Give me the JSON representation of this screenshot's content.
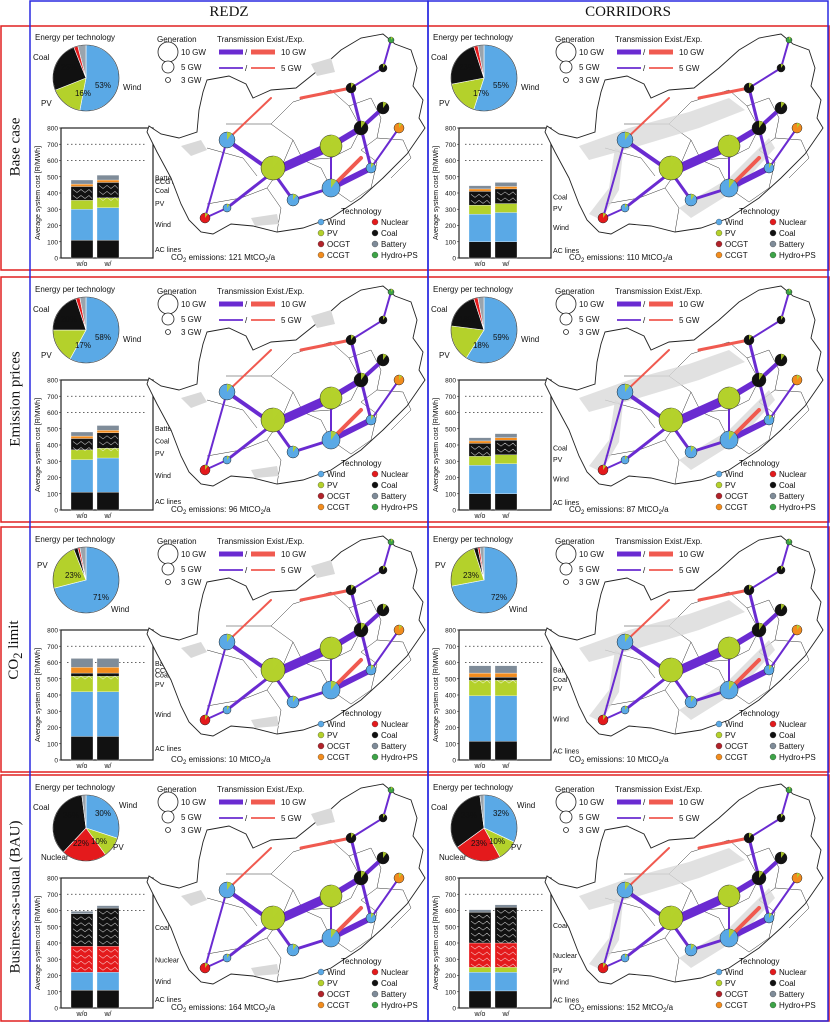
{
  "columns": [
    "REDZ",
    "CORRIDORS"
  ],
  "row_labels": [
    "Base case",
    "Emission prices",
    "CO2 limit",
    "Business-as-usual (BAU)"
  ],
  "labels": {
    "energy_title": "Energy per technology",
    "generation_title": "Generation",
    "gen_sizes": [
      "10 GW",
      "5 GW",
      "3 GW"
    ],
    "transmission_title": "Transmission Exist./Exp.",
    "trans_sizes": [
      "10 GW",
      "5 GW"
    ],
    "slash": "/",
    "technology_title": "Technology",
    "tech_legend": [
      "Wind",
      "Nuclear",
      "PV",
      "Coal",
      "OCGT",
      "Battery",
      "CCGT",
      "Hydro+PS"
    ],
    "y_axis": "Average system cost [R/MWh]",
    "y_ticks": [
      "0",
      "100",
      "200",
      "300",
      "400",
      "500",
      "600",
      "700",
      "800"
    ],
    "bar_categories": [
      "w/o\nEp",
      "w/\nEp"
    ],
    "co2_prefix": "CO2 emissions: "
  },
  "colors": {
    "Wind": "#5aa9e6",
    "PV": "#b4d12b",
    "Coal": "#111111",
    "Nuclear": "#e41a1c",
    "OCGT": "#b2222a",
    "CCGT": "#f28c1e",
    "Battery": "#7f8c99",
    "Hydro+PS": "#3da447",
    "AC lines": "#111111",
    "existing_line": "#6a2bd1",
    "expansion_line": "#f05a50",
    "row_border": "#e02020",
    "col_border": "#2a2ae0"
  },
  "chart_data": [
    {
      "type": "pie+bar",
      "row": "Base case",
      "column": "REDZ",
      "pie": [
        {
          "label": "Wind",
          "value": 53
        },
        {
          "label": "PV",
          "value": 16
        },
        {
          "label": "Coal",
          "value": 25
        },
        {
          "label": "Nuclear",
          "value": 2
        },
        {
          "label": "Other",
          "value": 4
        }
      ],
      "pie_labels_shown": [
        "Coal",
        "25%",
        "53%",
        "Wind",
        "PV",
        "16%"
      ],
      "bar_legend": [
        "Battery",
        "CCGT",
        "Coal",
        "PV",
        "Wind",
        "AC lines"
      ],
      "bars": [
        {
          "category": "w/o Ep",
          "stack": {
            "AC lines": 110,
            "Wind": 190,
            "PV": 55,
            "Coal": 85,
            "CCGT": 15,
            "Battery": 25
          }
        },
        {
          "category": "w/ Ep",
          "stack": {
            "AC lines": 110,
            "Wind": 200,
            "PV": 60,
            "Coal": 95,
            "CCGT": 15,
            "Battery": 30
          }
        }
      ],
      "ylim": [
        0,
        800
      ],
      "co2": "121 MtCO2/a"
    },
    {
      "type": "pie+bar",
      "row": "Base case",
      "column": "CORRIDORS",
      "pie": [
        {
          "label": "Wind",
          "value": 55
        },
        {
          "label": "PV",
          "value": 17
        },
        {
          "label": "Coal",
          "value": 23
        },
        {
          "label": "Nuclear",
          "value": 2
        },
        {
          "label": "Other",
          "value": 3
        }
      ],
      "pie_labels_shown": [
        "Coal",
        "23%",
        "55%",
        "Wind",
        "PV",
        "17%"
      ],
      "bar_legend": [
        "Coal",
        "PV",
        "Wind",
        "AC lines"
      ],
      "bars": [
        {
          "category": "w/o Ep",
          "stack": {
            "AC lines": 100,
            "Wind": 170,
            "PV": 55,
            "Coal": 85,
            "CCGT": 15,
            "Battery": 20
          }
        },
        {
          "category": "w/ Ep",
          "stack": {
            "AC lines": 100,
            "Wind": 180,
            "PV": 55,
            "Coal": 90,
            "CCGT": 15,
            "Battery": 25
          }
        }
      ],
      "ylim": [
        0,
        800
      ],
      "co2": "110 MtCO2/a"
    },
    {
      "type": "pie+bar",
      "row": "Emission prices",
      "column": "REDZ",
      "pie": [
        {
          "label": "Wind",
          "value": 58
        },
        {
          "label": "PV",
          "value": 17
        },
        {
          "label": "Coal",
          "value": 20
        },
        {
          "label": "Nuclear",
          "value": 2
        },
        {
          "label": "Other",
          "value": 3
        }
      ],
      "pie_labels_shown": [
        "Coal",
        "20%",
        "58%",
        "Wind",
        "PV",
        "17%"
      ],
      "bar_legend": [
        "Battery",
        "Coal",
        "PV",
        "Wind",
        "AC lines"
      ],
      "bars": [
        {
          "category": "w/o Ep",
          "stack": {
            "AC lines": 110,
            "Wind": 200,
            "PV": 60,
            "Coal": 70,
            "CCGT": 15,
            "Battery": 25
          }
        },
        {
          "category": "w/ Ep",
          "stack": {
            "AC lines": 110,
            "Wind": 210,
            "PV": 60,
            "Coal": 95,
            "CCGT": 15,
            "Battery": 30
          }
        }
      ],
      "ylim": [
        0,
        800
      ],
      "co2": "96 MtCO2/a"
    },
    {
      "type": "pie+bar",
      "row": "Emission prices",
      "column": "CORRIDORS",
      "pie": [
        {
          "label": "Wind",
          "value": 59
        },
        {
          "label": "PV",
          "value": 18
        },
        {
          "label": "Coal",
          "value": 18
        },
        {
          "label": "Nuclear",
          "value": 2
        },
        {
          "label": "Other",
          "value": 3
        }
      ],
      "pie_labels_shown": [
        "Coal",
        "18%",
        "59%",
        "Wind",
        "PV",
        "18%"
      ],
      "bar_legend": [
        "Coal",
        "PV",
        "Wind",
        "AC lines"
      ],
      "bars": [
        {
          "category": "w/o Ep",
          "stack": {
            "AC lines": 100,
            "Wind": 175,
            "PV": 55,
            "Coal": 80,
            "CCGT": 15,
            "Battery": 20
          }
        },
        {
          "category": "w/ Ep",
          "stack": {
            "AC lines": 100,
            "Wind": 185,
            "PV": 55,
            "Coal": 90,
            "CCGT": 15,
            "Battery": 25
          }
        }
      ],
      "ylim": [
        0,
        800
      ],
      "co2": "87 MtCO2/a"
    },
    {
      "type": "pie+bar",
      "row": "CO2 limit",
      "column": "REDZ",
      "pie": [
        {
          "label": "Wind",
          "value": 71
        },
        {
          "label": "PV",
          "value": 23
        },
        {
          "label": "Coal",
          "value": 2
        },
        {
          "label": "Nuclear",
          "value": 1
        },
        {
          "label": "Other",
          "value": 3
        }
      ],
      "pie_labels_shown": [
        "PV",
        "23%",
        "71%",
        "Wind"
      ],
      "bar_legend": [
        "Battery",
        "CCGT",
        "Coal",
        "PV",
        "Wind",
        "AC lines"
      ],
      "bars": [
        {
          "category": "w/o Ep",
          "stack": {
            "AC lines": 145,
            "Wind": 275,
            "PV": 95,
            "Coal": 20,
            "CCGT": 35,
            "Battery": 55
          }
        },
        {
          "category": "w/ Ep",
          "stack": {
            "AC lines": 145,
            "Wind": 275,
            "PV": 95,
            "Coal": 20,
            "CCGT": 35,
            "Battery": 55
          }
        }
      ],
      "ylim": [
        0,
        800
      ],
      "co2": "10 MtCO2/a"
    },
    {
      "type": "pie+bar",
      "row": "CO2 limit",
      "column": "CORRIDORS",
      "pie": [
        {
          "label": "Wind",
          "value": 72
        },
        {
          "label": "PV",
          "value": 23
        },
        {
          "label": "Coal",
          "value": 2
        },
        {
          "label": "Nuclear",
          "value": 1
        },
        {
          "label": "Other",
          "value": 2
        }
      ],
      "pie_labels_shown": [
        "PV",
        "23%",
        "72%",
        "Wind"
      ],
      "bar_legend": [
        "Battery",
        "Coal",
        "PV",
        "Wind",
        "AC lines"
      ],
      "bars": [
        {
          "category": "w/o Ep",
          "stack": {
            "AC lines": 115,
            "Wind": 280,
            "PV": 95,
            "Coal": 20,
            "CCGT": 25,
            "Battery": 45
          }
        },
        {
          "category": "w/ Ep",
          "stack": {
            "AC lines": 115,
            "Wind": 280,
            "PV": 95,
            "Coal": 20,
            "CCGT": 25,
            "Battery": 45
          }
        }
      ],
      "ylim": [
        0,
        800
      ],
      "co2": "10 MtCO2/a"
    },
    {
      "type": "pie+bar",
      "row": "Business-as-usual (BAU)",
      "column": "REDZ",
      "pie": [
        {
          "label": "Wind",
          "value": 30
        },
        {
          "label": "PV",
          "value": 10
        },
        {
          "label": "Nuclear",
          "value": 22
        },
        {
          "label": "Coal",
          "value": 36
        },
        {
          "label": "Other",
          "value": 2
        }
      ],
      "pie_labels_shown": [
        "Coal",
        "36%",
        "30%",
        "Wind",
        "PV",
        "10%",
        "22%",
        "Nuclear"
      ],
      "bar_legend": [
        "Coal",
        "Nuclear",
        "Wind",
        "AC lines"
      ],
      "bars": [
        {
          "category": "w/o Ep",
          "stack": {
            "AC lines": 110,
            "Wind": 110,
            "Nuclear": 160,
            "Coal": 200,
            "Battery": 15
          }
        },
        {
          "category": "w/ Ep",
          "stack": {
            "AC lines": 110,
            "Wind": 110,
            "Nuclear": 160,
            "Coal": 235,
            "Battery": 15
          }
        }
      ],
      "ylim": [
        0,
        800
      ],
      "co2": "164 MtCO2/a"
    },
    {
      "type": "pie+bar",
      "row": "Business-as-usual (BAU)",
      "column": "CORRIDORS",
      "pie": [
        {
          "label": "Wind",
          "value": 32
        },
        {
          "label": "PV",
          "value": 10
        },
        {
          "label": "Nuclear",
          "value": 23
        },
        {
          "label": "Coal",
          "value": 33
        },
        {
          "label": "Other",
          "value": 2
        }
      ],
      "pie_labels_shown": [
        "Coal",
        "33%",
        "32%",
        "Wind",
        "PV",
        "10%",
        "23%",
        "Nuclear"
      ],
      "bar_legend": [
        "Coal",
        "Nuclear",
        "PV",
        "Wind",
        "AC lines"
      ],
      "bars": [
        {
          "category": "w/o Ep",
          "stack": {
            "AC lines": 105,
            "Wind": 115,
            "PV": 30,
            "Nuclear": 150,
            "Coal": 190,
            "Battery": 15
          }
        },
        {
          "category": "w/ Ep",
          "stack": {
            "AC lines": 105,
            "Wind": 115,
            "PV": 30,
            "Nuclear": 150,
            "Coal": 220,
            "Battery": 15
          }
        }
      ],
      "ylim": [
        0,
        800
      ],
      "co2": "152 MtCO2/a"
    }
  ]
}
